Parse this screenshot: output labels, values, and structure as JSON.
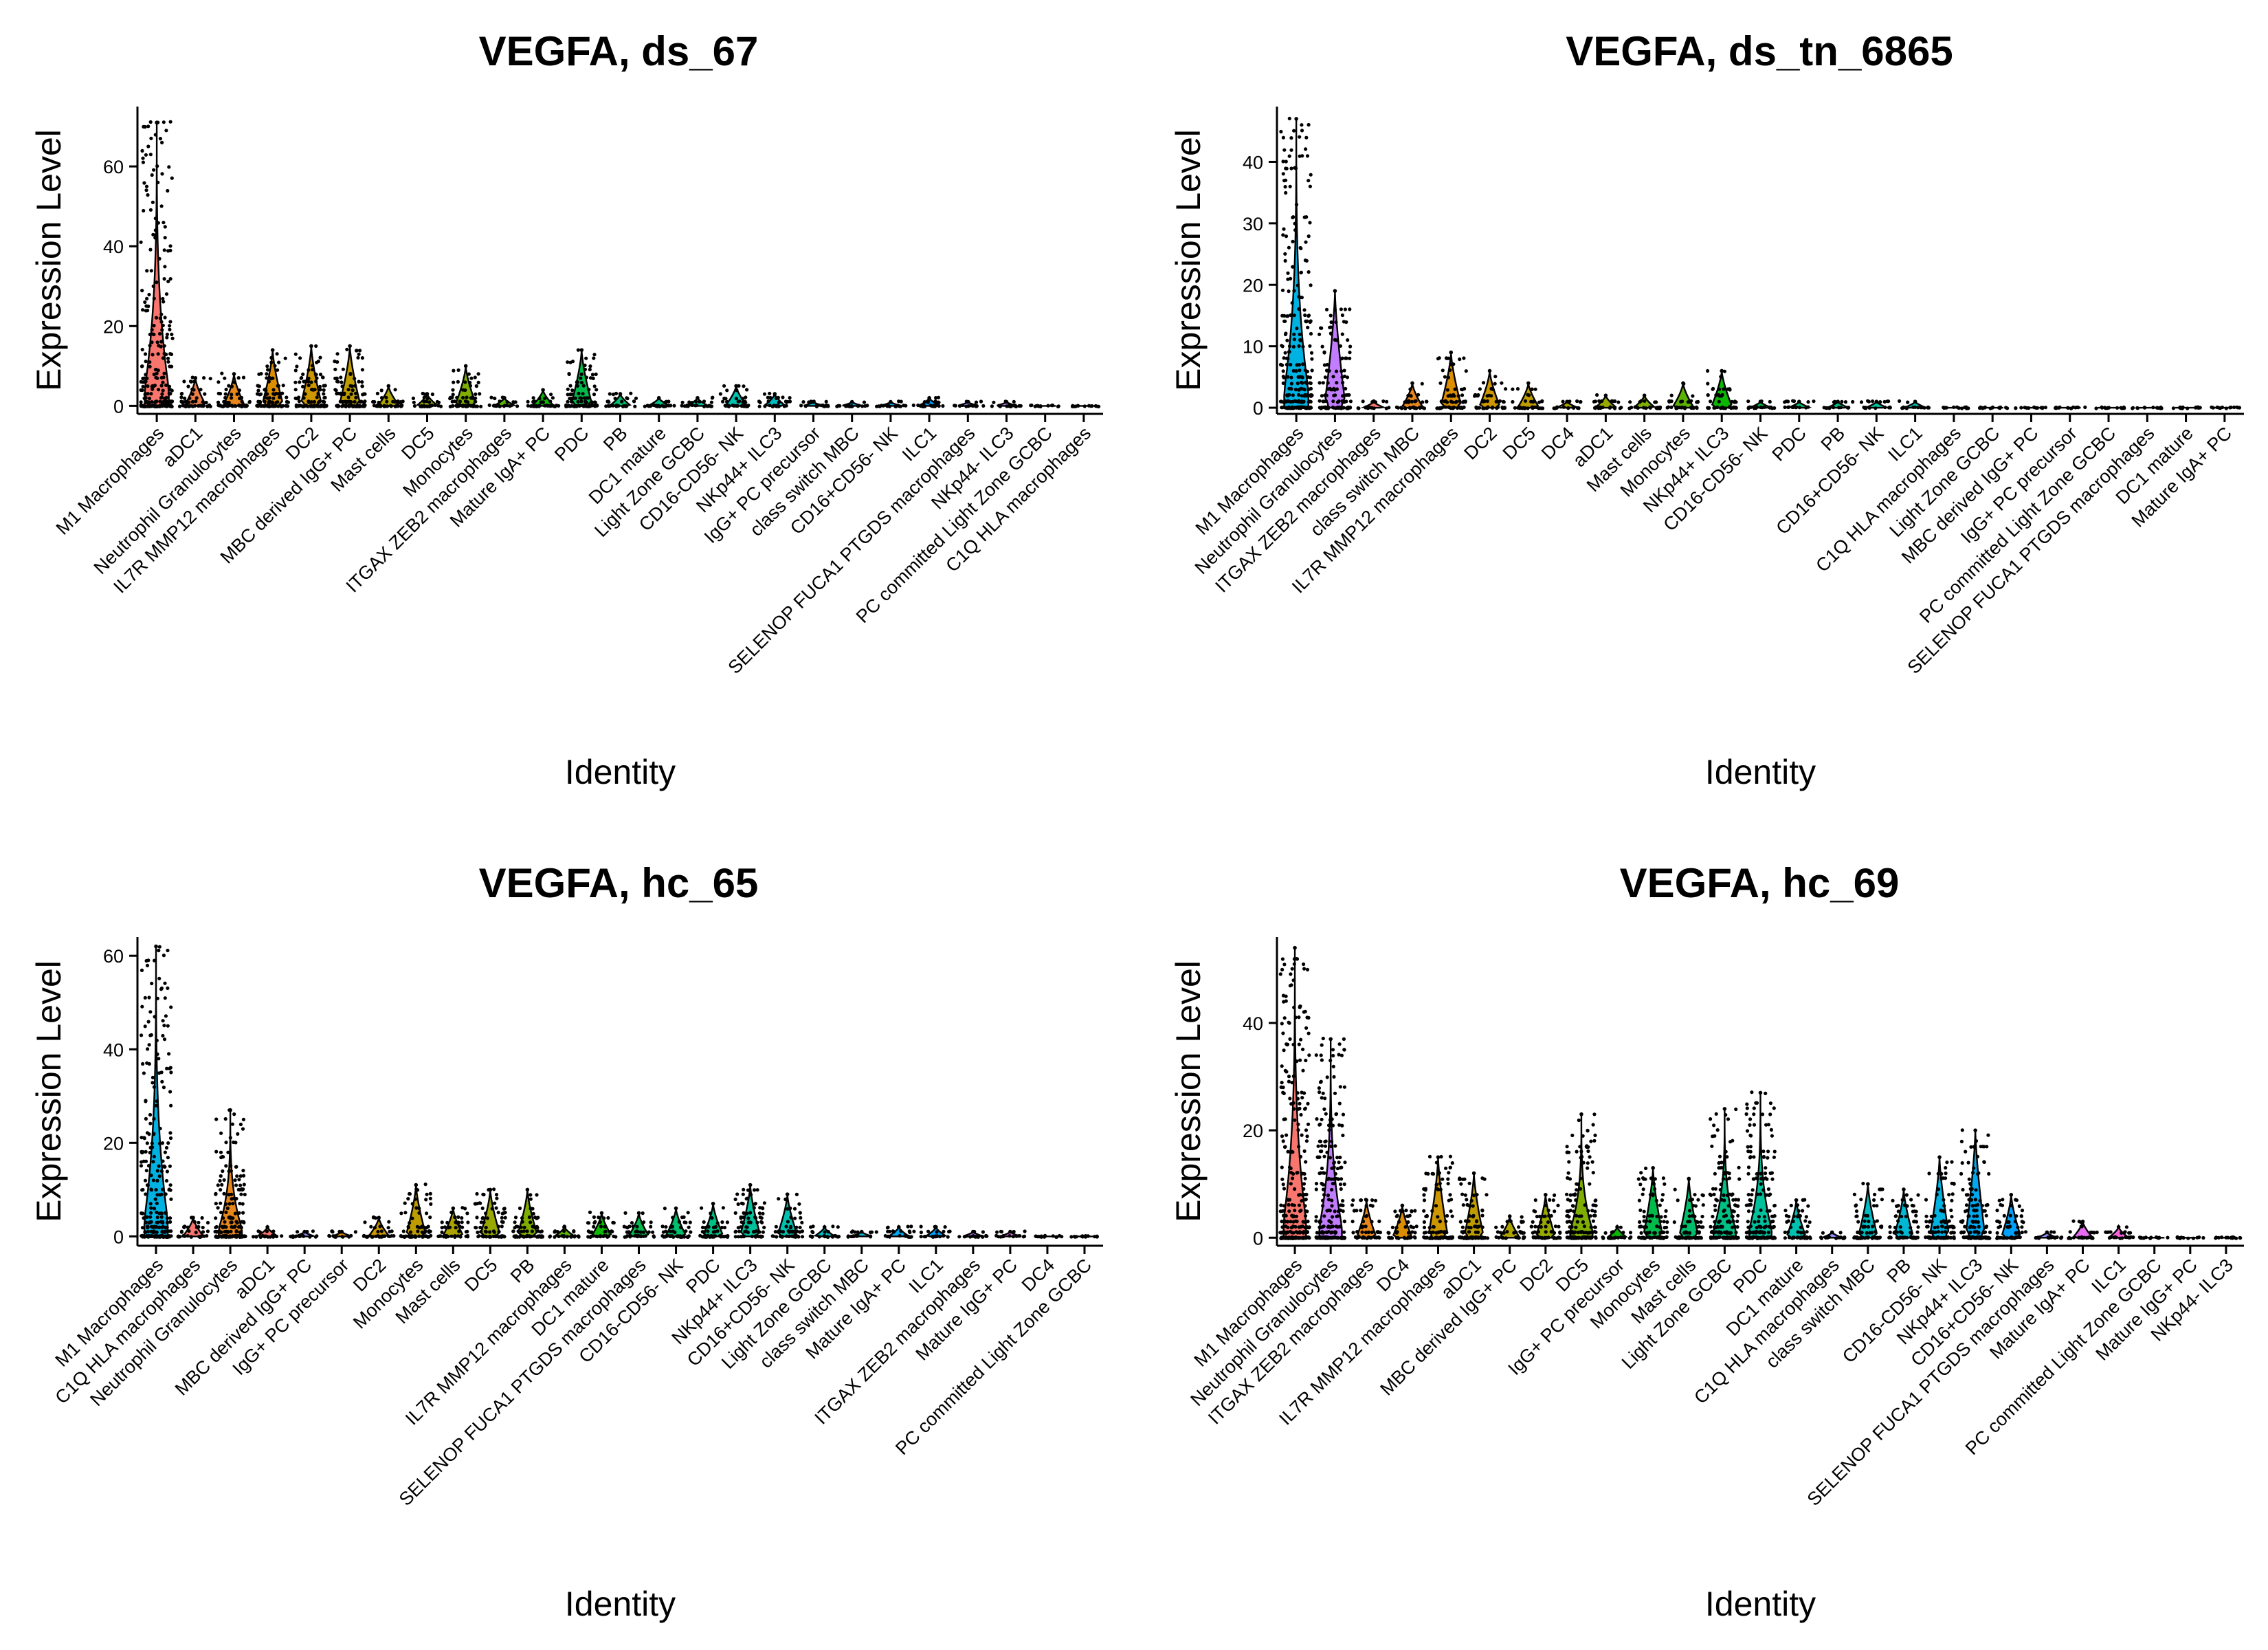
{
  "chart_data": [
    {
      "type": "violin",
      "title": "VEGFA, ds_67",
      "xlabel": "Identity",
      "ylabel": "Expression Level",
      "ylim": [
        -2,
        75
      ],
      "yticks": [
        0,
        20,
        40,
        60
      ],
      "categories": [
        "M1 Macrophages",
        "aDC1",
        "Neutrophil Granulocytes",
        "IL7R MMP12 macrophages",
        "DC2",
        "MBC derived IgG+ PC",
        "Mast cells",
        "DC5",
        "Monocytes",
        "ITGAX ZEB2 macrophages",
        "Mature IgA+ PC",
        "PDC",
        "PB",
        "DC1 mature",
        "Light Zone GCBC",
        "CD16-CD56- NK",
        "NKp44+ ILC3",
        "IgG+ PC precursor",
        "class switch MBC",
        "CD16+CD56- NK",
        "ILC1",
        "SELENOP FUCA1 PTGDS macrophages",
        "NKp44- ILC3",
        "PC committed Light Zone GCBC",
        "C1Q HLA macrophages"
      ],
      "max_values": [
        71,
        7,
        8,
        14,
        15,
        15,
        5,
        3,
        10,
        2,
        4,
        14,
        3,
        2,
        2,
        5,
        3,
        1,
        1,
        1,
        2,
        1,
        1,
        0,
        0
      ],
      "violin_colors": [
        "#F8766D",
        "#EF7F47",
        "#E7861B",
        "#DB8E00",
        "#CE9700",
        "#BE9C00",
        "#ACA300",
        "#98A800",
        "#7FAE00",
        "#5BB300",
        "#0CB702",
        "#00BB4B",
        "#00BE6C",
        "#00C085",
        "#00C19C",
        "#00C0B0",
        "#00BDC2",
        "#00B8D3",
        "#00B2E2",
        "#00A9EF",
        "#00A0FA",
        "#8F91FF",
        "#C27DFF",
        "#E76BF3",
        "#FF61C3"
      ]
    },
    {
      "type": "violin",
      "title": "VEGFA, ds_tn_6865",
      "xlabel": "Identity",
      "ylabel": "Expression Level",
      "ylim": [
        -1,
        49
      ],
      "yticks": [
        0,
        10,
        20,
        30,
        40
      ],
      "categories": [
        "M1 Macrophages",
        "Neutrophil Granulocytes",
        "ITGAX ZEB2 macrophages",
        "class switch MBC",
        "IL7R MMP12 macrophages",
        "DC2",
        "DC5",
        "DC4",
        "aDC1",
        "Mast cells",
        "Monocytes",
        "NKp44+ ILC3",
        "CD16-CD56- NK",
        "PDC",
        "PB",
        "CD16+CD56- NK",
        "ILC1",
        "C1Q HLA macrophages",
        "Light Zone GCBC",
        "MBC derived IgG+ PC",
        "IgG+ PC precursor",
        "PC committed Light Zone GCBC",
        "SELENOP FUCA1 PTGDS macrophages",
        "DC1 mature",
        "Mature IgA+ PC"
      ],
      "max_values": [
        47,
        19,
        1,
        4,
        9,
        6,
        4,
        1,
        2,
        2,
        4,
        6,
        1,
        1,
        1,
        1,
        1,
        0,
        0,
        0,
        0,
        0,
        0,
        0,
        0
      ],
      "violin_colors": [
        "#00B2E2",
        "#C27DFF",
        "#F8766D",
        "#E7861B",
        "#DB8E00",
        "#CE9700",
        "#BE9C00",
        "#ACA300",
        "#98A800",
        "#7FAE00",
        "#5BB300",
        "#0CB702",
        "#00BB4B",
        "#00BE6C",
        "#00C085",
        "#00C19C",
        "#00C0B0",
        "#00BDC2",
        "#00B8D3",
        "#00A9EF",
        "#00A0FA",
        "#8F91FF",
        "#E76BF3",
        "#FA62DB",
        "#FF61C3"
      ]
    },
    {
      "type": "violin",
      "title": "VEGFA, hc_65",
      "xlabel": "Identity",
      "ylabel": "Expression Level",
      "ylim": [
        -2,
        64
      ],
      "yticks": [
        0,
        20,
        40,
        60
      ],
      "categories": [
        "M1 Macrophages",
        "C1Q HLA macrophages",
        "Neutrophil Granulocytes",
        "aDC1",
        "MBC derived IgG+ PC",
        "IgG+ PC precursor",
        "DC2",
        "Monocytes",
        "Mast cells",
        "DC5",
        "PB",
        "IL7R MMP12 macrophages",
        "DC1 mature",
        "SELENOP FUCA1 PTGDS macrophages",
        "CD16-CD56- NK",
        "PDC",
        "NKp44+ ILC3",
        "CD16+CD56- NK",
        "Light Zone GCBC",
        "class switch MBC",
        "Mature IgA+ PC",
        "ILC1",
        "ITGAX ZEB2 macrophages",
        "Mature IgG+ PC",
        "DC4",
        "PC committed Light Zone GCBC"
      ],
      "max_values": [
        62,
        4,
        27,
        2,
        1,
        1,
        4,
        11,
        6,
        10,
        10,
        2,
        5,
        5,
        6,
        7,
        11,
        9,
        2,
        1,
        2,
        2,
        1,
        1,
        0,
        0
      ],
      "violin_colors": [
        "#00B2E2",
        "#F8766D",
        "#E7861B",
        "#F8766D",
        "#8F91FF",
        "#DB8E00",
        "#CE9700",
        "#BE9C00",
        "#ACA300",
        "#98A800",
        "#7FAE00",
        "#5BB300",
        "#0CB702",
        "#00BB4B",
        "#00BE6C",
        "#00C085",
        "#00C19C",
        "#00C0B0",
        "#00BDC2",
        "#00B8D3",
        "#00A9EF",
        "#00A0FA",
        "#C27DFF",
        "#E76BF3",
        "#FA62DB",
        "#FF61C3"
      ]
    },
    {
      "type": "violin",
      "title": "VEGFA, hc_69",
      "xlabel": "Identity",
      "ylabel": "Expression Level",
      "ylim": [
        -1.5,
        56
      ],
      "yticks": [
        0,
        20,
        40
      ],
      "categories": [
        "M1 Macrophages",
        "Neutrophil Granulocytes",
        "ITGAX ZEB2 macrophages",
        "DC4",
        "IL7R MMP12 macrophages",
        "aDC1",
        "MBC derived IgG+ PC",
        "DC2",
        "DC5",
        "IgG+ PC precursor",
        "Monocytes",
        "Mast cells",
        "Light Zone GCBC",
        "PDC",
        "DC1 mature",
        "C1Q HLA macrophages",
        "class switch MBC",
        "PB",
        "CD16-CD56- NK",
        "NKp44+ ILC3",
        "CD16+CD56- NK",
        "SELENOP FUCA1 PTGDS macrophages",
        "Mature IgA+ PC",
        "ILC1",
        "PC committed Light Zone GCBC",
        "Mature IgG+ PC",
        "NKp44- ILC3"
      ],
      "max_values": [
        54,
        37,
        7,
        6,
        15,
        12,
        4,
        8,
        23,
        2,
        13,
        11,
        24,
        27,
        7,
        1,
        10,
        9,
        15,
        20,
        8,
        1,
        3,
        2,
        0,
        0,
        0
      ],
      "violin_colors": [
        "#F8766D",
        "#C27DFF",
        "#E7861B",
        "#DB8E00",
        "#CE9700",
        "#BE9C00",
        "#ACA300",
        "#98A800",
        "#7FAE00",
        "#0CB702",
        "#00BB4B",
        "#00BE6C",
        "#00C085",
        "#00C19C",
        "#00C0B0",
        "#8F91FF",
        "#00BDC2",
        "#00B8D3",
        "#00B2E2",
        "#00A9EF",
        "#00A0FA",
        "#8F91FF",
        "#E76BF3",
        "#FA62DB",
        "#FF61C3",
        "#F8766D",
        "#EF7F47"
      ]
    }
  ]
}
